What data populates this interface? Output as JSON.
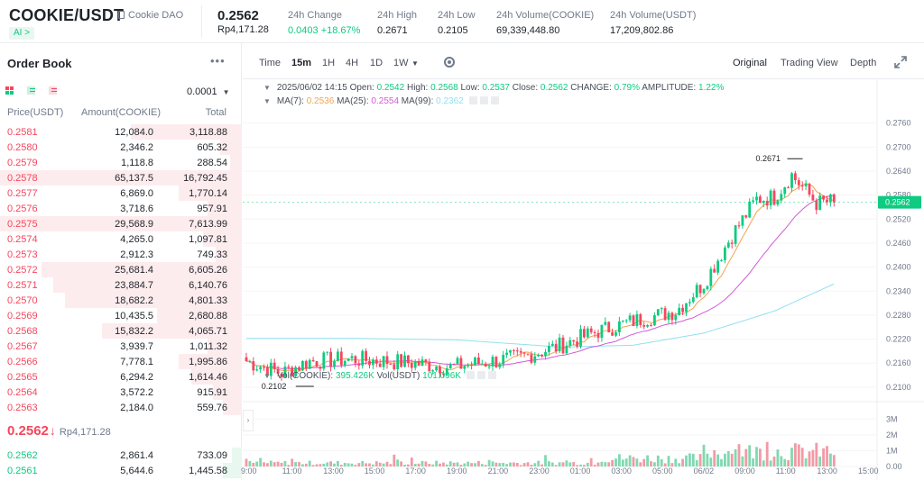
{
  "header": {
    "pair": "COOKIE/USDT",
    "project": "Cookie DAO",
    "ai_badge": "AI >",
    "last_price": "0.2562",
    "last_price_fiat": "Rp4,171.28",
    "stats": [
      {
        "label": "24h Change",
        "value": "0.0403 +18.67%",
        "up": true
      },
      {
        "label": "24h High",
        "value": "0.2671"
      },
      {
        "label": "24h Low",
        "value": "0.2105"
      },
      {
        "label": "24h Volume(COOKIE)",
        "value": "69,339,448.80"
      },
      {
        "label": "24h Volume(USDT)",
        "value": "17,209,802.86"
      }
    ]
  },
  "orderbook": {
    "title": "Order Book",
    "more": "•••",
    "tick": "0.0001",
    "columns": {
      "price": "Price(USDT)",
      "amount": "Amount(COOKIE)",
      "total": "Total"
    },
    "asks": [
      {
        "price": "0.2581",
        "amount": "12,084.0",
        "total": "3,118.88",
        "depth": 0.46
      },
      {
        "price": "0.2580",
        "amount": "2,346.2",
        "total": "605.32",
        "depth": 0.09
      },
      {
        "price": "0.2579",
        "amount": "1,118.8",
        "total": "288.54",
        "depth": 0.05
      },
      {
        "price": "0.2578",
        "amount": "65,137.5",
        "total": "16,792.45",
        "depth": 1.0
      },
      {
        "price": "0.2577",
        "amount": "6,869.0",
        "total": "1,770.14",
        "depth": 0.26
      },
      {
        "price": "0.2576",
        "amount": "3,718.6",
        "total": "957.91",
        "depth": 0.14
      },
      {
        "price": "0.2575",
        "amount": "29,568.9",
        "total": "7,613.99",
        "depth": 1.0
      },
      {
        "price": "0.2574",
        "amount": "4,265.0",
        "total": "1,097.81",
        "depth": 0.16
      },
      {
        "price": "0.2573",
        "amount": "2,912.3",
        "total": "749.33",
        "depth": 0.11
      },
      {
        "price": "0.2572",
        "amount": "25,681.4",
        "total": "6,605.26",
        "depth": 0.83
      },
      {
        "price": "0.2571",
        "amount": "23,884.7",
        "total": "6,140.76",
        "depth": 0.78
      },
      {
        "price": "0.2570",
        "amount": "18,682.2",
        "total": "4,801.33",
        "depth": 0.73
      },
      {
        "price": "0.2569",
        "amount": "10,435.5",
        "total": "2,680.88",
        "depth": 0.35
      },
      {
        "price": "0.2568",
        "amount": "15,832.2",
        "total": "4,065.71",
        "depth": 0.58
      },
      {
        "price": "0.2567",
        "amount": "3,939.7",
        "total": "1,011.32",
        "depth": 0.14
      },
      {
        "price": "0.2566",
        "amount": "7,778.1",
        "total": "1,995.86",
        "depth": 0.26
      },
      {
        "price": "0.2565",
        "amount": "6,294.2",
        "total": "1,614.46",
        "depth": 0.21
      },
      {
        "price": "0.2564",
        "amount": "3,572.2",
        "total": "915.91",
        "depth": 0.12
      },
      {
        "price": "0.2563",
        "amount": "2,184.0",
        "total": "559.76",
        "depth": 0.08
      }
    ],
    "mid_price": "0.2562",
    "mid_arrow": "↓",
    "mid_fiat": "Rp4,171.28",
    "bids": [
      {
        "price": "0.2562",
        "amount": "2,861.4",
        "total": "733.09",
        "depth": 0.04
      },
      {
        "price": "0.2561",
        "amount": "5,644.6",
        "total": "1,445.58",
        "depth": 0.08
      }
    ]
  },
  "chart_toolbar": {
    "intervals": [
      "Time",
      "15m",
      "1H",
      "4H",
      "1D",
      "1W"
    ],
    "active_interval": "15m",
    "views": [
      "Original",
      "Trading View",
      "Depth"
    ],
    "active_view": "Original"
  },
  "chart_legend": {
    "ohlc": {
      "date": "2025/06/02 14:15",
      "open_label": "Open:",
      "open": "0.2542",
      "high_label": "High:",
      "high": "0.2568",
      "low_label": "Low:",
      "low": "0.2537",
      "close_label": "Close:",
      "close": "0.2562",
      "change_label": "CHANGE:",
      "change": "0.79%",
      "amplitude_label": "AMPLITUDE:",
      "amplitude": "1.22%"
    },
    "ma": [
      {
        "label": "MA(7):",
        "value": "0.2536",
        "color": "#f0a450"
      },
      {
        "label": "MA(25):",
        "value": "0.2554",
        "color": "#d35ad6"
      },
      {
        "label": "MA(99):",
        "value": "0.2362",
        "color": "#8fe1f0"
      }
    ],
    "volume": {
      "label_coin": "Vol(COOKIE):",
      "value_coin": "395.426K",
      "label_usdt": "Vol(USDT)",
      "value_usdt": "101.096K"
    }
  },
  "colors": {
    "up": "#0ecb81",
    "down": "#f6465d",
    "up_soft": "#7fd9b0",
    "down_soft": "#f29aa5",
    "ma7": "#f0a450",
    "ma25": "#d35ad6",
    "ma99": "#8fe1f0"
  },
  "chart_data": {
    "type": "candlestick",
    "price_axis": {
      "min": 0.2075,
      "max": 0.2775,
      "ticks": [
        "0.2760",
        "0.2700",
        "0.2640",
        "0.2580",
        "0.2520",
        "0.2460",
        "0.2400",
        "0.2340",
        "0.2280",
        "0.2220",
        "0.2160",
        "0.2100"
      ]
    },
    "volume_axis": {
      "max": 3300000,
      "ticks": [
        "3M",
        "2M",
        "1M",
        "0.00"
      ]
    },
    "time_labels": [
      "9:00",
      "11:00",
      "13:00",
      "15:00",
      "17:00",
      "19:00",
      "21:00",
      "23:00",
      "01:00",
      "03:00",
      "05:00",
      "06/02",
      "09:00",
      "11:00",
      "13:00",
      "15:00"
    ],
    "current_price_tag": "0.2562",
    "high_marker": "0.2671",
    "low_marker": "0.2102",
    "ma99_anchors": [
      [
        0,
        0.2222
      ],
      [
        30,
        0.2222
      ],
      [
        60,
        0.2218
      ],
      [
        90,
        0.22
      ],
      [
        110,
        0.2205
      ],
      [
        130,
        0.2235
      ],
      [
        150,
        0.229
      ],
      [
        168,
        0.2362
      ]
    ]
  }
}
